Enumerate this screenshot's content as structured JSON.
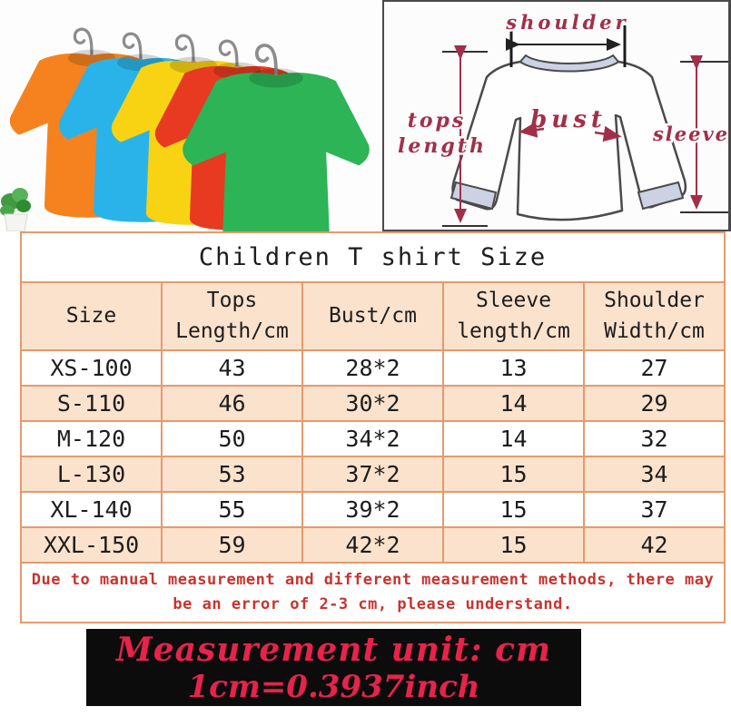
{
  "hero": {
    "shirts": {
      "colors": [
        "#f5821f",
        "#2ab3e8",
        "#f8d314",
        "#e73a21",
        "#2cb457"
      ]
    },
    "diagram": {
      "labels": {
        "shoulder": "shoulder",
        "tops_line1": "tops",
        "tops_line2": "length",
        "bust": "bust",
        "sleeve": "sleeve"
      }
    }
  },
  "table": {
    "title": "Children T shirt Size",
    "columns": [
      "Size",
      "Tops\nLength/cm",
      "Bust/cm",
      "Sleeve\nlength/cm",
      "Shoulder\nWidth/cm"
    ],
    "rows": [
      [
        "XS-100",
        "43",
        "28*2",
        "13",
        "27"
      ],
      [
        "S-110",
        "46",
        "30*2",
        "14",
        "29"
      ],
      [
        "M-120",
        "50",
        "34*2",
        "14",
        "32"
      ],
      [
        "L-130",
        "53",
        "37*2",
        "15",
        "34"
      ],
      [
        "XL-140",
        "55",
        "39*2",
        "15",
        "37"
      ],
      [
        "XXL-150",
        "59",
        "42*2",
        "15",
        "42"
      ]
    ]
  },
  "disclaimer": "Due to manual measurement and different measurement methods, there may\nbe an error of 2-3 cm, please understand.",
  "footer": {
    "line1": "Measurement unit: cm",
    "line2": "1cm=0.3937inch"
  },
  "colors": {
    "stripe": "#fbe2cc",
    "table_border": "#e59a6d",
    "outer_border": "#a5a29c",
    "disclaimer": "#c8332e",
    "footer_bg": "#0c0c0c",
    "footer_text": "#e7234c",
    "diagram_label": "#a22f49",
    "diagram_line": "#4a4a4a",
    "collar_fill": "#ccd2e3",
    "hanger": "#d7a15f",
    "hook": "#8c8c8c"
  },
  "chart_data": {
    "type": "table",
    "title": "Children T shirt Size",
    "columns": [
      "Size",
      "Tops Length/cm",
      "Bust/cm",
      "Sleeve length/cm",
      "Shoulder Width/cm"
    ],
    "rows": [
      [
        "XS-100",
        "43",
        "28*2",
        "13",
        "27"
      ],
      [
        "S-110",
        "46",
        "30*2",
        "14",
        "29"
      ],
      [
        "M-120",
        "50",
        "34*2",
        "14",
        "32"
      ],
      [
        "L-130",
        "53",
        "37*2",
        "15",
        "34"
      ],
      [
        "XL-140",
        "55",
        "39*2",
        "15",
        "37"
      ],
      [
        "XXL-150",
        "59",
        "42*2",
        "15",
        "42"
      ]
    ],
    "notes": [
      "Due to manual measurement and different measurement methods, there may be an error of 2-3 cm, please understand.",
      "Measurement unit: cm",
      "1cm=0.3937inch"
    ]
  }
}
